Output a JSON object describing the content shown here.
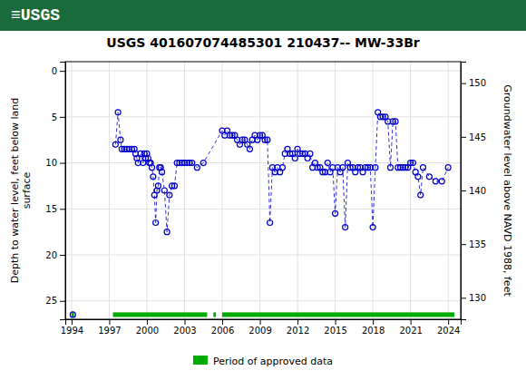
{
  "chart_data": {
    "type": "line",
    "title": "USGS 401607074485301 210437-- MW-33Br",
    "annotations": [
      {
        "text": "≡USGS",
        "color": "#1a6b3c"
      }
    ],
    "y_label": "Depth to water level, feet below land\nsurface",
    "y2_label": "Groundwater level above NAVD 1988, feet",
    "xlim": [
      1993.5,
      2025
    ],
    "ylim": [
      27,
      -1
    ],
    "y2lim": [
      128,
      152
    ],
    "xticks": [
      1994,
      1997,
      2000,
      2003,
      2006,
      2009,
      2012,
      2015,
      2018,
      2021,
      2024
    ],
    "yticks": [
      0,
      5,
      10,
      15,
      20,
      25
    ],
    "y2ticks": [
      130,
      135,
      140,
      145,
      150
    ],
    "grid": true,
    "series": [
      {
        "type": "line",
        "color": "#0000cc",
        "line_style": "dashed",
        "marker": "circle",
        "x": [
          1997.5,
          1997.7,
          1997.9,
          1998.0,
          1998.2,
          1998.4,
          1998.6,
          1998.8,
          1999.0,
          1999.1,
          1999.2,
          1999.3,
          1999.5,
          1999.7,
          1999.8,
          1999.9,
          2000.0,
          2000.1,
          2000.2,
          2000.3,
          2000.4,
          2000.5,
          2000.6,
          2000.7,
          2000.8,
          2000.9,
          2001.0,
          2001.1,
          2001.2,
          2001.4,
          2001.6,
          2001.8,
          2002.0,
          2002.2,
          2002.4,
          2002.6,
          2002.8,
          2003.0,
          2003.2,
          2003.4,
          2003.6,
          2004.0,
          2004.5,
          2006.0,
          2006.2,
          2006.4,
          2006.6,
          2006.8,
          2007.0,
          2007.2,
          2007.4,
          2007.6,
          2007.8,
          2008.0,
          2008.2,
          2008.4,
          2008.6,
          2008.8,
          2009.0,
          2009.2,
          2009.4,
          2009.6,
          2009.8,
          2010.0,
          2010.2,
          2010.4,
          2010.6,
          2010.8,
          2011.0,
          2011.2,
          2011.4,
          2011.6,
          2011.8,
          2012.0,
          2012.2,
          2012.4,
          2012.6,
          2012.8,
          2013.0,
          2013.2,
          2013.4,
          2013.6,
          2013.8,
          2014.0,
          2014.2,
          2014.4,
          2014.6,
          2014.8,
          2015.0,
          2015.2,
          2015.4,
          2015.6,
          2015.8,
          2016.0,
          2016.2,
          2016.4,
          2016.6,
          2016.8,
          2017.0,
          2017.2,
          2017.4,
          2017.6,
          2017.8,
          2018.0,
          2018.2,
          2018.4,
          2018.6,
          2018.8,
          2019.0,
          2019.2,
          2019.4,
          2019.6,
          2019.8,
          2020.0,
          2020.2,
          2020.4,
          2020.6,
          2020.8,
          2021.0,
          2021.2,
          2021.4,
          2021.6,
          2021.8,
          2022.0,
          2022.5,
          2023.0,
          2023.5,
          2024.0
        ],
        "values": [
          8.0,
          4.5,
          7.5,
          8.5,
          8.5,
          8.5,
          8.5,
          8.5,
          8.5,
          9.0,
          9.5,
          10.0,
          9.0,
          10.0,
          9.0,
          9.5,
          9.0,
          9.5,
          10.0,
          10.0,
          10.5,
          11.5,
          13.5,
          16.5,
          13.0,
          12.5,
          10.5,
          10.5,
          11.0,
          13.0,
          17.5,
          13.5,
          12.5,
          12.5,
          10.0,
          10.0,
          10.0,
          10.0,
          10.0,
          10.0,
          10.0,
          10.5,
          10.0,
          6.5,
          7.0,
          6.5,
          7.0,
          7.0,
          7.0,
          7.5,
          8.0,
          7.5,
          7.5,
          8.0,
          8.5,
          7.5,
          7.0,
          7.5,
          7.0,
          7.0,
          7.5,
          7.5,
          16.5,
          10.5,
          11.0,
          10.5,
          11.0,
          10.5,
          9.0,
          8.5,
          9.0,
          9.0,
          9.5,
          8.5,
          9.0,
          9.0,
          9.0,
          9.5,
          9.0,
          10.5,
          10.0,
          10.5,
          10.5,
          11.0,
          11.0,
          10.0,
          11.0,
          10.5,
          15.5,
          10.5,
          11.0,
          10.5,
          17.0,
          10.0,
          10.5,
          10.5,
          11.0,
          10.5,
          10.5,
          11.0,
          10.5,
          10.5,
          10.5,
          17.0,
          10.5,
          4.5,
          5.0,
          5.0,
          5.0,
          5.5,
          10.5,
          5.5,
          5.5,
          10.5,
          10.5,
          10.5,
          10.5,
          10.5,
          10.0,
          10.0,
          11.0,
          11.5,
          13.5,
          10.5,
          11.5,
          12.0,
          12.0,
          10.5
        ]
      },
      {
        "type": "scatter",
        "color": "#0000cc",
        "marker": "circle",
        "x": [
          1994.1
        ],
        "values": [
          26.5
        ]
      }
    ],
    "approved_periods": {
      "name": "Period of approved data",
      "color": "#00aa00",
      "y": 26.5,
      "height": 0.5,
      "ranges": [
        [
          1994.0,
          1994.2
        ],
        [
          1997.3,
          2004.8
        ],
        [
          2005.3,
          2005.5
        ],
        [
          2006.0,
          2024.5
        ]
      ]
    }
  }
}
